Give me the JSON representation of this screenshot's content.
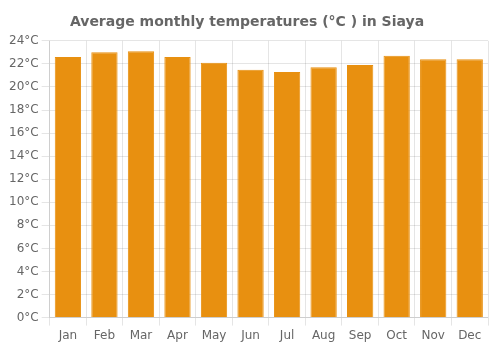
{
  "chart_data": {
    "type": "bar",
    "title": "Average monthly temperatures (°C ) in Siaya",
    "categories": [
      "Jan",
      "Feb",
      "Mar",
      "Apr",
      "May",
      "Jun",
      "Jul",
      "Aug",
      "Sep",
      "Oct",
      "Nov",
      "Dec"
    ],
    "values": [
      22.6,
      23.0,
      23.1,
      22.6,
      22.1,
      21.5,
      21.3,
      21.7,
      21.9,
      22.7,
      22.4,
      22.4
    ],
    "color": "#E89010",
    "ylim": [
      0,
      24
    ],
    "yticks": [
      {
        "value": 0,
        "label": "0°C"
      },
      {
        "value": 2,
        "label": "2°C"
      },
      {
        "value": 4,
        "label": "4°C"
      },
      {
        "value": 6,
        "label": "6°C"
      },
      {
        "value": 8,
        "label": "8°C"
      },
      {
        "value": 10,
        "label": "10°C"
      },
      {
        "value": 12,
        "label": "12°C"
      },
      {
        "value": 14,
        "label": "14°C"
      },
      {
        "value": 16,
        "label": "16°C"
      },
      {
        "value": 18,
        "label": "18°C"
      },
      {
        "value": 20,
        "label": "20°C"
      },
      {
        "value": 22,
        "label": "22°C"
      },
      {
        "value": 24,
        "label": "24°C"
      }
    ],
    "grid": true
  }
}
